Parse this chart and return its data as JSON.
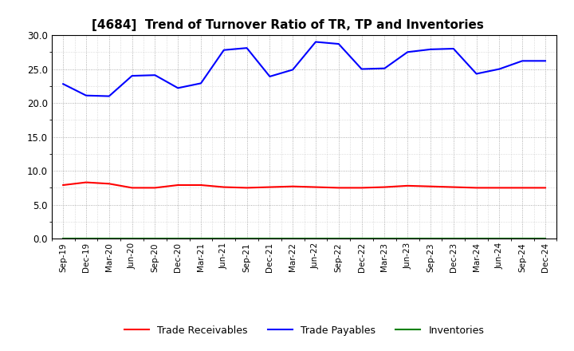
{
  "title": "[4684]  Trend of Turnover Ratio of TR, TP and Inventories",
  "x_labels": [
    "Sep-19",
    "Dec-19",
    "Mar-20",
    "Jun-20",
    "Sep-20",
    "Dec-20",
    "Mar-21",
    "Jun-21",
    "Sep-21",
    "Dec-21",
    "Mar-22",
    "Jun-22",
    "Sep-22",
    "Dec-22",
    "Mar-23",
    "Jun-23",
    "Sep-23",
    "Dec-23",
    "Mar-24",
    "Jun-24",
    "Sep-24",
    "Dec-24"
  ],
  "trade_receivables": [
    7.9,
    8.3,
    8.1,
    7.5,
    7.5,
    7.9,
    7.9,
    7.6,
    7.5,
    7.6,
    7.7,
    7.6,
    7.5,
    7.5,
    7.6,
    7.8,
    7.7,
    7.6,
    7.5,
    7.5,
    7.5,
    7.5
  ],
  "trade_payables": [
    22.8,
    21.1,
    21.0,
    24.0,
    24.1,
    22.2,
    22.9,
    27.8,
    28.1,
    23.9,
    24.9,
    29.0,
    28.7,
    25.0,
    25.1,
    27.5,
    27.9,
    28.0,
    24.3,
    25.0,
    26.2,
    26.2
  ],
  "inventories": [
    0.0,
    0.0,
    0.0,
    0.0,
    0.0,
    0.0,
    0.0,
    0.0,
    0.0,
    0.0,
    0.0,
    0.0,
    0.0,
    0.0,
    0.0,
    0.0,
    0.0,
    0.0,
    0.0,
    0.0,
    0.0,
    0.0
  ],
  "tr_color": "#ff0000",
  "tp_color": "#0000ff",
  "inv_color": "#008000",
  "ylim": [
    0.0,
    30.0
  ],
  "yticks": [
    0.0,
    5.0,
    10.0,
    15.0,
    20.0,
    25.0,
    30.0
  ],
  "grid_color": "#999999",
  "bg_color": "#ffffff",
  "title_fontsize": 11,
  "legend_labels": [
    "Trade Receivables",
    "Trade Payables",
    "Inventories"
  ]
}
